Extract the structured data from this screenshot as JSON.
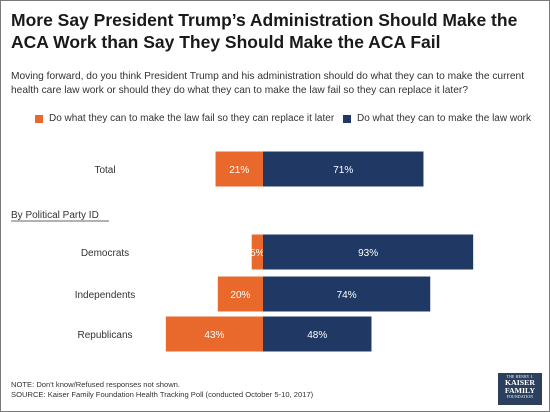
{
  "title": "More Say President Trump’s Administration Should Make the ACA Work than Say They Should Make the ACA Fail",
  "subtitle": "Moving forward, do you think President Trump and his administration should do what they can to make the current health care law work or should they do what they can to make the law fail so they can replace it later?",
  "notes": {
    "note": "NOTE: Don't know/Refused responses not shown.",
    "source": "SOURCE: Kaiser Family Foundation Health Tracking Poll (conducted October 5-10, 2017)"
  },
  "logo": {
    "line1": "THE HENRY J.",
    "line2a": "KAISER",
    "line2b": "FAMILY",
    "line3": "FOUNDATION"
  },
  "chart_data": {
    "type": "bar",
    "orientation": "horizontal diverging",
    "categories": [
      "Total",
      "Democrats",
      "Independents",
      "Republicans"
    ],
    "group_label": "By Political Party ID",
    "group_starts_at": "Democrats",
    "series": [
      {
        "name": "Do what they can to make the law fail so they can replace it later",
        "color": "#e9692c",
        "direction": "left",
        "values": [
          21,
          5,
          20,
          43
        ]
      },
      {
        "name": "Do what they can to make the law work",
        "color": "#1f3864",
        "direction": "right",
        "values": [
          71,
          93,
          74,
          48
        ]
      }
    ],
    "value_suffix": "%",
    "legend_position": "top",
    "grid": false
  }
}
